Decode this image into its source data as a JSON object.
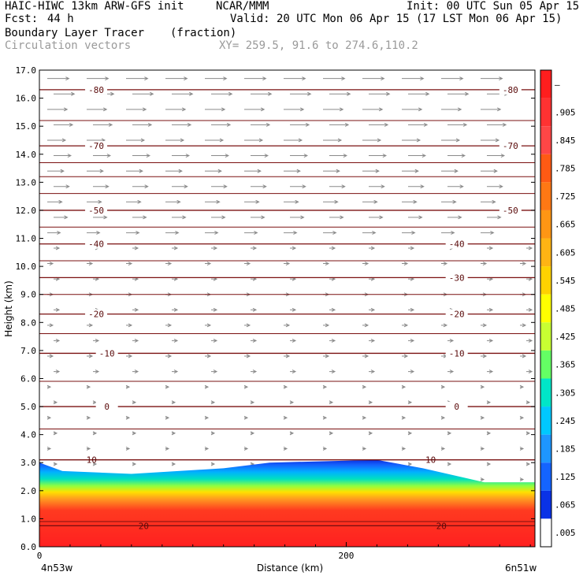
{
  "header": {
    "model": "HAIC-HIWC 13km ARW-GFS init",
    "org": "NCAR/MMM",
    "init": "Init: 00 UTC Sun 05 Apr 15",
    "fcst_label": "Fcst:",
    "fcst_value": "44 h",
    "valid": "Valid: 20 UTC Mon 06 Apr 15 (17 LST Mon 06 Apr 15)",
    "field": "Boundary Layer Tracer",
    "units": "(fraction)",
    "vectors": "Circulation vectors",
    "xy": "XY= 259.5, 91.6 to 274.6,110.2"
  },
  "chart_data": {
    "type": "heatmap",
    "title": "Boundary Layer Tracer",
    "ylabel": "Height (km)",
    "xlabel": "Distance (km)",
    "ylim": [
      0,
      17
    ],
    "xlim": [
      0,
      323
    ],
    "yticks": [
      "0.0",
      "1.0",
      "2.0",
      "3.0",
      "4.0",
      "5.0",
      "6.0",
      "7.0",
      "8.0",
      "9.0",
      "10.0",
      "11.0",
      "12.0",
      "13.0",
      "14.0",
      "15.0",
      "16.0",
      "17.0"
    ],
    "xticks": [
      {
        "value": 0,
        "label": "0"
      },
      {
        "value": 200,
        "label": "200"
      }
    ],
    "x_endpoints": {
      "left": "4n53w",
      "right": "6n51w"
    },
    "colorbar": {
      "labels": [
        "–",
        ".905",
        ".845",
        ".785",
        ".725",
        ".665",
        ".605",
        ".545",
        ".485",
        ".425",
        ".365",
        ".305",
        ".245",
        ".185",
        ".125",
        ".065",
        ".005"
      ],
      "colors": [
        "#ff1e1e",
        "#ff3232",
        "#ff4646",
        "#ff5a14",
        "#ff7814",
        "#ff9614",
        "#ffb414",
        "#ffd200",
        "#ffff00",
        "#c8ff32",
        "#64ff64",
        "#00e6c8",
        "#00c8ff",
        "#1e96ff",
        "#1464ff",
        "#0a32e6",
        "#ffffff"
      ]
    },
    "temperature_contours": [
      {
        "label": "-80",
        "height_km": 16.3,
        "label_x_km": [
          37,
          307
        ]
      },
      {
        "label": "-70",
        "height_km": 14.3,
        "label_x_km": [
          37,
          307
        ]
      },
      {
        "label": "-50",
        "height_km": 12.0,
        "label_x_km": [
          37,
          307
        ]
      },
      {
        "label": "-40",
        "height_km": 10.8,
        "label_x_km": [
          37,
          272
        ]
      },
      {
        "label": "-30",
        "height_km": 9.6,
        "label_x_km": [
          272
        ]
      },
      {
        "label": "-20",
        "height_km": 8.3,
        "label_x_km": [
          37,
          272
        ]
      },
      {
        "label": "-10",
        "height_km": 6.9,
        "label_x_km": [
          44,
          272
        ]
      },
      {
        "label": "0",
        "height_km": 5.0,
        "label_x_km": [
          44,
          272
        ]
      },
      {
        "label": "10",
        "height_km": 3.1,
        "label_x_km": [
          34,
          255
        ]
      },
      {
        "label": "20",
        "height_km": 0.75,
        "label_x_km": [
          68,
          262
        ]
      }
    ],
    "plain_contours_km": [
      15.2,
      13.7,
      13.2,
      12.6,
      11.4,
      10.2,
      9.0,
      7.6,
      5.9,
      4.2,
      0.9
    ],
    "tracer_top_km": [
      [
        0,
        3.0
      ],
      [
        15,
        2.7
      ],
      [
        60,
        2.6
      ],
      [
        120,
        2.8
      ],
      [
        150,
        3.0
      ],
      [
        220,
        3.1
      ],
      [
        250,
        2.8
      ],
      [
        290,
        2.3
      ],
      [
        323,
        2.3
      ]
    ]
  }
}
